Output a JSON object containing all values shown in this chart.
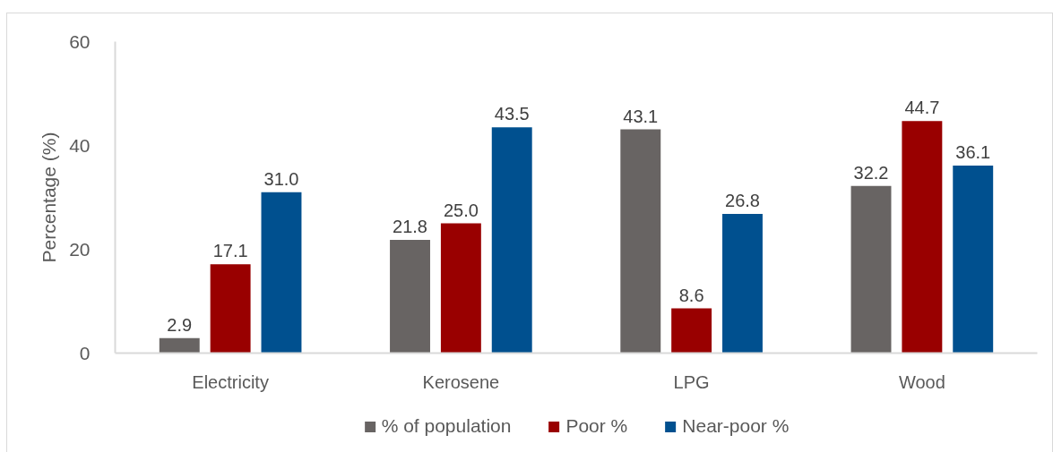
{
  "chart_data": {
    "type": "bar",
    "ylabel": "Percentage (%)",
    "categories": [
      "Electricity",
      "Kerosene",
      "LPG",
      "Wood"
    ],
    "series": [
      {
        "name": "% of population",
        "color": "#686463",
        "values": [
          2.9,
          21.8,
          43.1,
          32.2
        ],
        "value_labels": [
          "2.9",
          "21.8",
          "43.1",
          "32.2"
        ]
      },
      {
        "name": "Poor %",
        "color": "#990000",
        "values": [
          17.1,
          25.0,
          8.6,
          44.7
        ],
        "value_labels": [
          "17.1",
          "25.0",
          "8.6",
          "44.7"
        ]
      },
      {
        "name": "Near-poor %",
        "color": "#00508f",
        "values": [
          31.0,
          43.5,
          26.8,
          36.1
        ],
        "value_labels": [
          "31.0",
          "43.5",
          "26.8",
          "36.1"
        ]
      }
    ],
    "ylim": [
      0,
      60
    ],
    "yticks": [
      0,
      20,
      40,
      60
    ],
    "grid": false,
    "legend": "bottom"
  }
}
